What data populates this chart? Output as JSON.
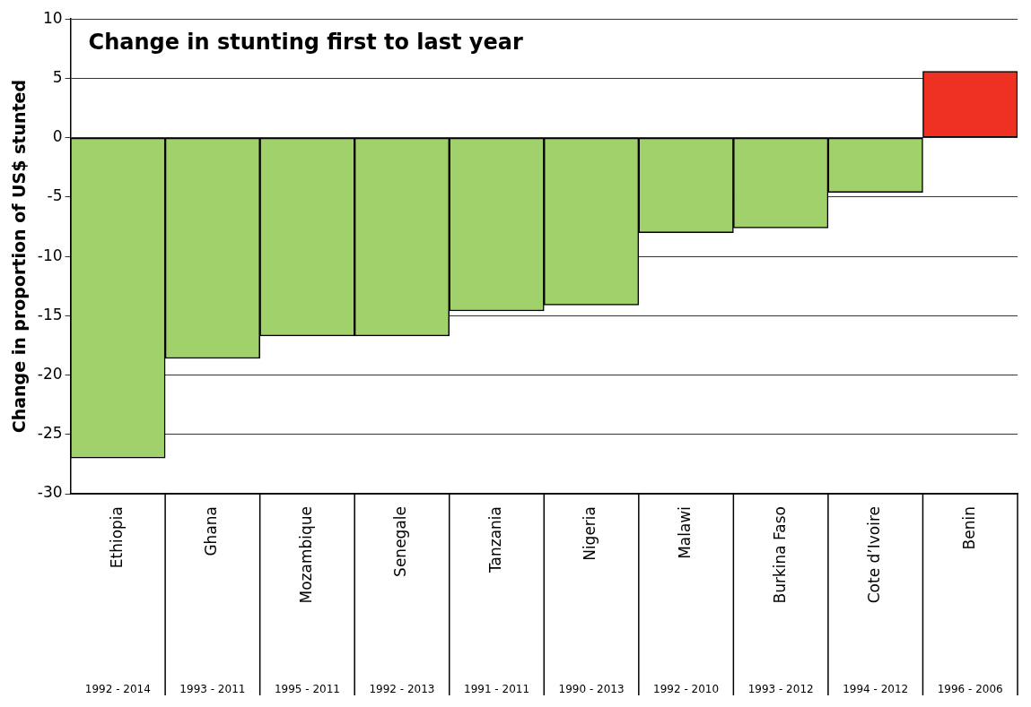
{
  "chart_data": {
    "type": "bar",
    "title": "Change in stunting first to last year",
    "ylabel": "Change in proportion of US$ stunted",
    "categories": [
      "Ethiopia",
      "Ghana",
      "Mozambique",
      "Senegale",
      "Tanzania",
      "Nigeria",
      "Malawi",
      "Burkina Faso",
      "Cote d’Ivoire",
      "Benin"
    ],
    "values": [
      -27,
      -18.6,
      -16.7,
      -16.7,
      -14.6,
      -14.1,
      -8,
      -7.6,
      -4.6,
      5.6
    ],
    "colors": [
      "#a1d16a",
      "#a1d16a",
      "#a1d16a",
      "#a1d16a",
      "#a1d16a",
      "#a1d16a",
      "#a1d16a",
      "#a1d16a",
      "#a1d16a",
      "#ef3124"
    ],
    "ylim": [
      -30,
      10
    ],
    "yticks": [
      -30,
      -25,
      -20,
      -15,
      -10,
      -5,
      0,
      5,
      10
    ],
    "grid": "y",
    "legend": false,
    "annotations": [
      "1992 - 2014",
      "1993 - 2011",
      "1995 - 2011",
      "1992 - 2013",
      "1991 - 2011",
      "1990 - 2013",
      "1992 - 2010",
      "1993 - 2012",
      "1994 - 2012",
      "1996 - 2006"
    ]
  }
}
